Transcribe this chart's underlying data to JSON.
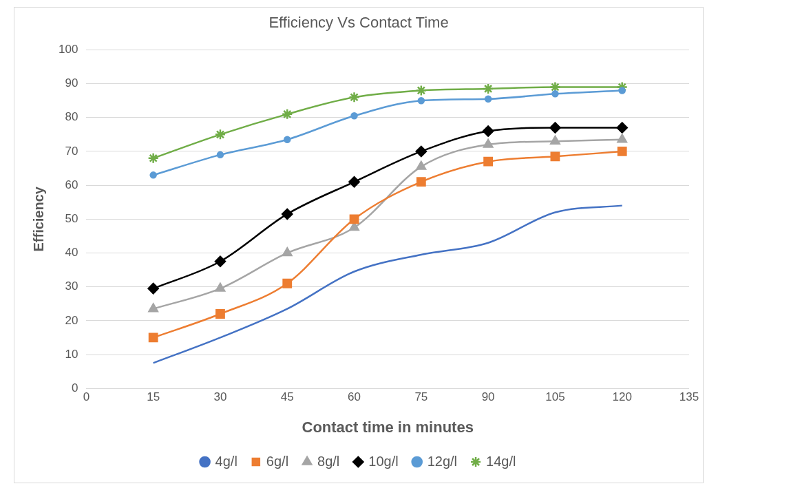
{
  "chart_data": {
    "type": "line",
    "title": "Efficiency Vs Contact Time",
    "xlabel": "Contact time in minutes",
    "ylabel": "Efficiency",
    "x": [
      15,
      30,
      45,
      60,
      75,
      90,
      105,
      120
    ],
    "xlim": [
      0,
      135
    ],
    "xticks": [
      0,
      15,
      30,
      45,
      60,
      75,
      90,
      105,
      120,
      135
    ],
    "ylim": [
      0,
      100
    ],
    "yticks": [
      0,
      10,
      20,
      30,
      40,
      50,
      60,
      70,
      80,
      90,
      100
    ],
    "grid": "y",
    "legend": "bottom",
    "series": [
      {
        "name": "4g/l",
        "color": "#4472c4",
        "marker": "none",
        "values": [
          7.5,
          15,
          23.5,
          34.5,
          39.5,
          43,
          52,
          54
        ]
      },
      {
        "name": "6g/l",
        "color": "#ed7d31",
        "marker": "square",
        "values": [
          15,
          22,
          31,
          50,
          61,
          67,
          68.5,
          70
        ]
      },
      {
        "name": "8g/l",
        "color": "#a5a5a5",
        "marker": "triangle",
        "values": [
          23.5,
          29.5,
          40,
          47.5,
          65.5,
          72,
          73,
          73.5
        ]
      },
      {
        "name": "10g/l",
        "color": "#000000",
        "marker": "diamond",
        "values": [
          29.5,
          37.5,
          51.5,
          61,
          70,
          76,
          77,
          77
        ]
      },
      {
        "name": "12g/l",
        "color": "#5b9bd5",
        "marker": "circle",
        "values": [
          63,
          69,
          73.5,
          80.5,
          85,
          85.5,
          87,
          88
        ]
      },
      {
        "name": "14g/l",
        "color": "#70ad47",
        "marker": "cross",
        "values": [
          68,
          75,
          81,
          86,
          88,
          88.5,
          89,
          89
        ]
      }
    ]
  }
}
